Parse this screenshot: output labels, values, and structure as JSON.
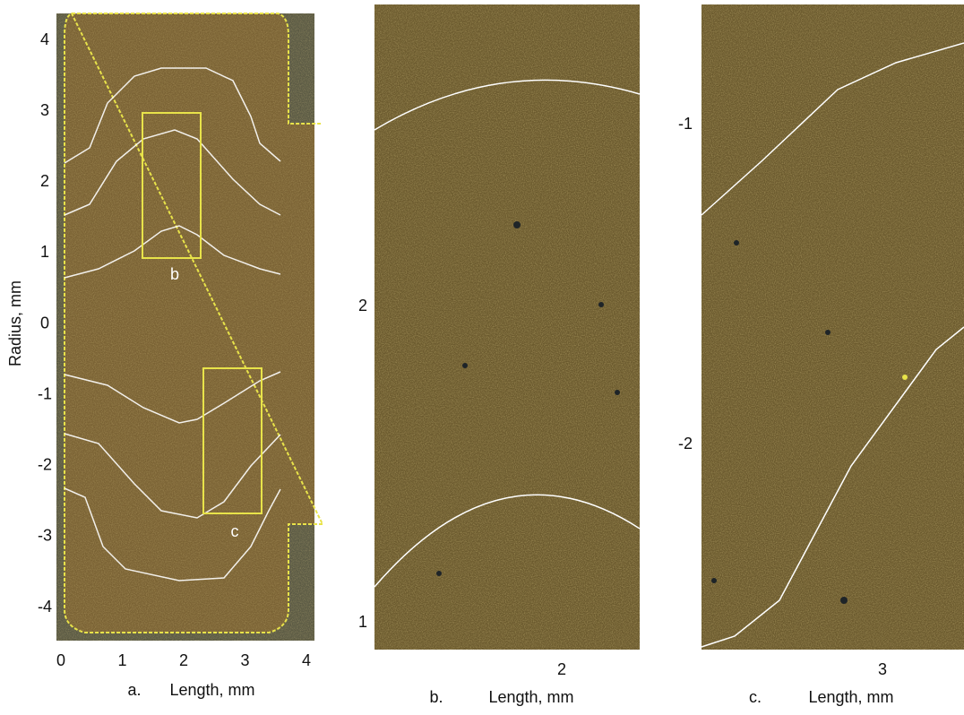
{
  "figure": {
    "y_label": "Radius, mm",
    "panels": [
      {
        "label": "a.",
        "x_label": "Length, mm",
        "xticks": [
          0,
          1,
          2,
          3,
          4
        ],
        "yticks": [
          4,
          3,
          2,
          1,
          0,
          -1,
          -2,
          -3,
          -4
        ],
        "box_labels": [
          "b",
          "c"
        ]
      },
      {
        "label": "b.",
        "x_label": "Length, mm",
        "xticks": [
          2
        ],
        "yticks": [
          2,
          1
        ]
      },
      {
        "label": "c.",
        "x_label": "Length, mm",
        "xticks": [
          3
        ],
        "yticks": [
          -1,
          -2
        ]
      }
    ]
  }
}
